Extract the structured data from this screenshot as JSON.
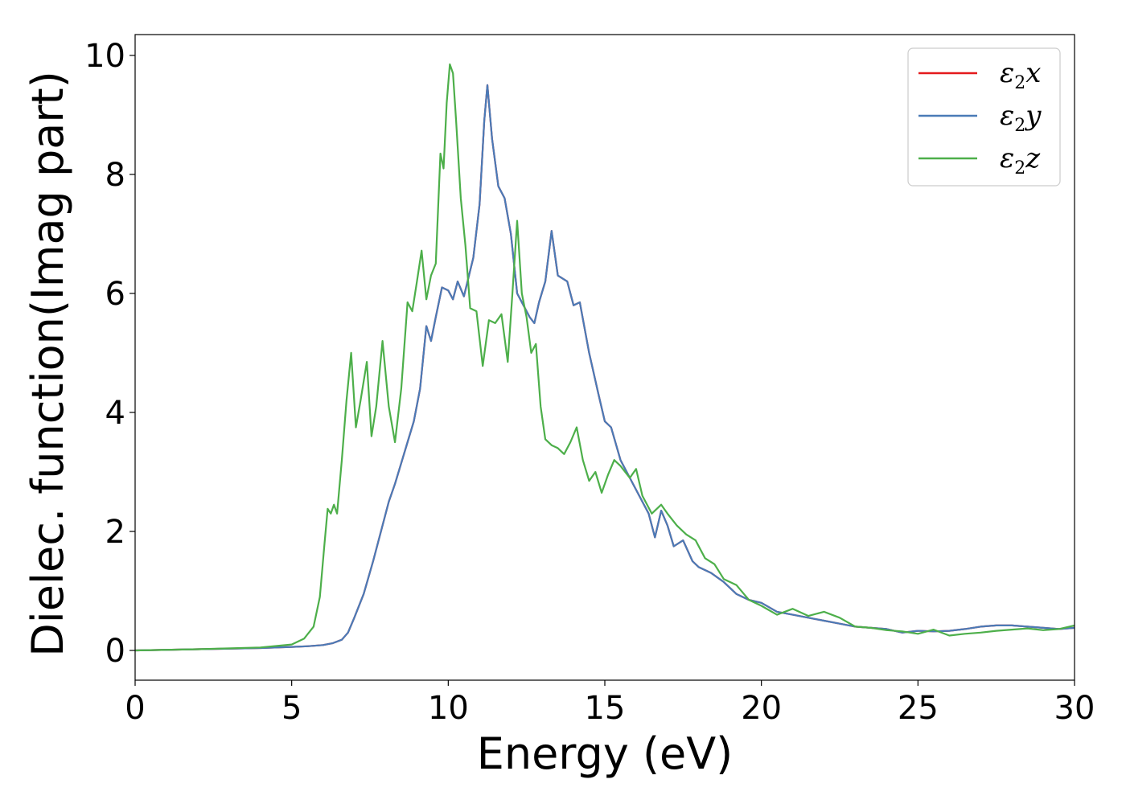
{
  "chart_data": {
    "type": "line",
    "title": "",
    "xlabel": "Energy (eV)",
    "ylabel": "Dielec. function(Imag part)",
    "xlim": [
      0,
      30
    ],
    "ylim": [
      -0.5,
      10.35
    ],
    "xticks": [
      0,
      5,
      10,
      15,
      20,
      25,
      30
    ],
    "yticks": [
      0,
      2,
      4,
      6,
      8,
      10
    ],
    "grid": false,
    "legend_position": "top-right",
    "series": [
      {
        "name": "ε2x",
        "legend_base": "ε",
        "legend_sub": "2",
        "legend_tail": "x",
        "color": "#e41a1c",
        "x": [
          0,
          2,
          4,
          5,
          5.5,
          6,
          6.3,
          6.6,
          6.8,
          7,
          7.3,
          7.6,
          7.9,
          8.1,
          8.3,
          8.5,
          8.7,
          8.9,
          9.1,
          9.3,
          9.45,
          9.6,
          9.8,
          10,
          10.15,
          10.3,
          10.5,
          10.8,
          11,
          11.15,
          11.25,
          11.4,
          11.6,
          11.8,
          12,
          12.2,
          12.4,
          12.6,
          12.75,
          12.9,
          13.1,
          13.3,
          13.5,
          13.8,
          14,
          14.2,
          14.5,
          14.8,
          15,
          15.2,
          15.5,
          15.8,
          16.1,
          16.4,
          16.6,
          16.8,
          17,
          17.2,
          17.5,
          17.8,
          18,
          18.4,
          18.8,
          19.2,
          19.6,
          20,
          20.5,
          21,
          21.5,
          22,
          22.5,
          23,
          23.5,
          24,
          24.5,
          25,
          25.5,
          26,
          26.5,
          27,
          27.5,
          28,
          28.5,
          29,
          29.5,
          30
        ],
        "y": [
          0,
          0.02,
          0.04,
          0.06,
          0.07,
          0.09,
          0.12,
          0.18,
          0.3,
          0.55,
          0.95,
          1.5,
          2.1,
          2.5,
          2.8,
          3.15,
          3.5,
          3.85,
          4.4,
          5.45,
          5.2,
          5.6,
          6.1,
          6.05,
          5.9,
          6.2,
          5.95,
          6.6,
          7.5,
          8.9,
          9.5,
          8.6,
          7.8,
          7.6,
          7.0,
          6.0,
          5.8,
          5.6,
          5.5,
          5.85,
          6.2,
          7.05,
          6.3,
          6.2,
          5.8,
          5.85,
          5.0,
          4.3,
          3.85,
          3.75,
          3.2,
          2.9,
          2.6,
          2.3,
          1.9,
          2.35,
          2.1,
          1.75,
          1.85,
          1.5,
          1.4,
          1.3,
          1.15,
          0.95,
          0.85,
          0.8,
          0.65,
          0.6,
          0.55,
          0.5,
          0.45,
          0.4,
          0.38,
          0.36,
          0.3,
          0.33,
          0.32,
          0.33,
          0.36,
          0.4,
          0.42,
          0.42,
          0.4,
          0.38,
          0.36,
          0.38
        ]
      },
      {
        "name": "ε2y",
        "legend_base": "ε",
        "legend_sub": "2",
        "legend_tail": "y",
        "color": "#4a7bb7",
        "x": [
          0,
          2,
          4,
          5,
          5.5,
          6,
          6.3,
          6.6,
          6.8,
          7,
          7.3,
          7.6,
          7.9,
          8.1,
          8.3,
          8.5,
          8.7,
          8.9,
          9.1,
          9.3,
          9.45,
          9.6,
          9.8,
          10,
          10.15,
          10.3,
          10.5,
          10.8,
          11,
          11.15,
          11.25,
          11.4,
          11.6,
          11.8,
          12,
          12.2,
          12.4,
          12.6,
          12.75,
          12.9,
          13.1,
          13.3,
          13.5,
          13.8,
          14,
          14.2,
          14.5,
          14.8,
          15,
          15.2,
          15.5,
          15.8,
          16.1,
          16.4,
          16.6,
          16.8,
          17,
          17.2,
          17.5,
          17.8,
          18,
          18.4,
          18.8,
          19.2,
          19.6,
          20,
          20.5,
          21,
          21.5,
          22,
          22.5,
          23,
          23.5,
          24,
          24.5,
          25,
          25.5,
          26,
          26.5,
          27,
          27.5,
          28,
          28.5,
          29,
          29.5,
          30
        ],
        "y": [
          0,
          0.02,
          0.04,
          0.06,
          0.07,
          0.09,
          0.12,
          0.18,
          0.3,
          0.55,
          0.95,
          1.5,
          2.1,
          2.5,
          2.8,
          3.15,
          3.5,
          3.85,
          4.4,
          5.45,
          5.2,
          5.6,
          6.1,
          6.05,
          5.9,
          6.2,
          5.95,
          6.6,
          7.5,
          8.9,
          9.5,
          8.6,
          7.8,
          7.6,
          7.0,
          6.0,
          5.8,
          5.6,
          5.5,
          5.85,
          6.2,
          7.05,
          6.3,
          6.2,
          5.8,
          5.85,
          5.0,
          4.3,
          3.85,
          3.75,
          3.2,
          2.9,
          2.6,
          2.3,
          1.9,
          2.35,
          2.1,
          1.75,
          1.85,
          1.5,
          1.4,
          1.3,
          1.15,
          0.95,
          0.85,
          0.8,
          0.65,
          0.6,
          0.55,
          0.5,
          0.45,
          0.4,
          0.38,
          0.36,
          0.3,
          0.33,
          0.32,
          0.33,
          0.36,
          0.4,
          0.42,
          0.42,
          0.4,
          0.38,
          0.36,
          0.38
        ]
      },
      {
        "name": "ε2z",
        "legend_base": "ε",
        "legend_sub": "2",
        "legend_tail": "z",
        "color": "#4daf4a",
        "x": [
          0,
          2,
          4,
          5,
          5.4,
          5.7,
          5.9,
          6.05,
          6.15,
          6.25,
          6.35,
          6.45,
          6.6,
          6.75,
          6.9,
          7.05,
          7.2,
          7.4,
          7.55,
          7.7,
          7.9,
          8.1,
          8.3,
          8.5,
          8.7,
          8.85,
          9.0,
          9.15,
          9.3,
          9.45,
          9.6,
          9.75,
          9.85,
          9.95,
          10.05,
          10.15,
          10.25,
          10.4,
          10.55,
          10.7,
          10.9,
          11.1,
          11.3,
          11.5,
          11.7,
          11.9,
          12.05,
          12.2,
          12.35,
          12.5,
          12.65,
          12.8,
          12.95,
          13.1,
          13.3,
          13.5,
          13.7,
          13.9,
          14.1,
          14.3,
          14.5,
          14.7,
          14.9,
          15.1,
          15.3,
          15.5,
          15.8,
          16.0,
          16.2,
          16.5,
          16.8,
          17.0,
          17.3,
          17.6,
          17.9,
          18.2,
          18.5,
          18.8,
          19.2,
          19.6,
          20,
          20.5,
          21,
          21.5,
          22,
          22.5,
          23,
          23.5,
          24,
          24.5,
          25,
          25.5,
          26,
          26.5,
          27,
          27.5,
          28,
          28.5,
          29,
          29.5,
          30
        ],
        "y": [
          0,
          0.02,
          0.05,
          0.1,
          0.2,
          0.4,
          0.9,
          1.8,
          2.38,
          2.3,
          2.45,
          2.3,
          3.2,
          4.2,
          5.0,
          3.75,
          4.2,
          4.85,
          3.6,
          4.1,
          5.2,
          4.1,
          3.5,
          4.4,
          5.85,
          5.7,
          6.2,
          6.72,
          5.9,
          6.3,
          6.5,
          8.35,
          8.1,
          9.2,
          9.85,
          9.7,
          8.9,
          7.6,
          6.8,
          5.75,
          5.7,
          4.78,
          5.55,
          5.5,
          5.65,
          4.85,
          6.0,
          7.22,
          6.0,
          5.6,
          5.0,
          5.15,
          4.1,
          3.55,
          3.45,
          3.4,
          3.3,
          3.5,
          3.75,
          3.2,
          2.85,
          3.0,
          2.65,
          2.95,
          3.2,
          3.1,
          2.9,
          3.05,
          2.6,
          2.3,
          2.45,
          2.3,
          2.1,
          1.95,
          1.85,
          1.55,
          1.45,
          1.2,
          1.1,
          0.85,
          0.75,
          0.6,
          0.7,
          0.58,
          0.65,
          0.55,
          0.4,
          0.38,
          0.34,
          0.32,
          0.28,
          0.35,
          0.25,
          0.28,
          0.3,
          0.33,
          0.35,
          0.37,
          0.34,
          0.36,
          0.42
        ]
      }
    ]
  }
}
